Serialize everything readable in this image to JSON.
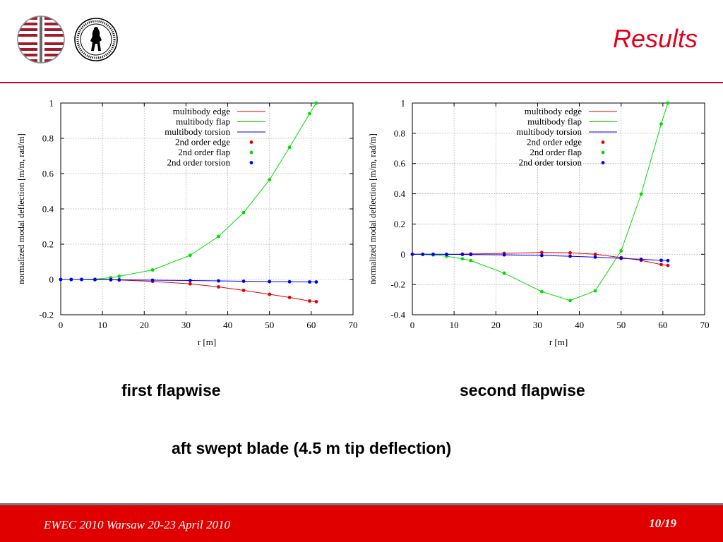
{
  "header": {
    "title": "Results"
  },
  "logos": [
    {
      "icon": "striped-circle-logo-icon"
    },
    {
      "icon": "university-seal-logo-icon"
    }
  ],
  "colors": {
    "accent": "#e2001a",
    "edge": "#e00000",
    "flap": "#00dd00",
    "torsion": "#0000ee"
  },
  "chart_data": [
    {
      "type": "line",
      "xlabel": "r [m]",
      "ylabel": "normalized modal deflection [m/m, rad/m]",
      "xlim": [
        0,
        70
      ],
      "ylim": [
        -0.2,
        1
      ],
      "xticks": [
        0,
        10,
        20,
        30,
        40,
        50,
        60,
        70
      ],
      "yticks": [
        -0.2,
        0,
        0.2,
        0.4,
        0.6,
        0.8,
        1
      ],
      "ytick_labels": [
        "-0.2",
        "0",
        "0.2",
        "0.4",
        "0.6",
        "0.8",
        "1"
      ],
      "grid": true,
      "legend_position": "top-right",
      "series": [
        {
          "name": "multibody edge",
          "kind": "line",
          "color": "#e00000",
          "x": [
            0,
            2.5,
            5,
            8.2,
            12,
            14,
            22,
            31,
            37.8,
            43.8,
            50,
            54.8,
            59.6,
            61.2
          ],
          "y": [
            0,
            0,
            0,
            -0.001,
            -0.002,
            -0.003,
            -0.011,
            -0.025,
            -0.042,
            -0.062,
            -0.084,
            -0.102,
            -0.122,
            -0.126
          ]
        },
        {
          "name": "multibody flap",
          "kind": "line",
          "color": "#00dd00",
          "x": [
            0,
            2.5,
            5,
            8.2,
            12,
            14,
            22,
            31,
            37.8,
            43.8,
            50,
            54.8,
            59.6,
            61.2
          ],
          "y": [
            0,
            0,
            0.001,
            0.002,
            0.01,
            0.018,
            0.054,
            0.137,
            0.244,
            0.379,
            0.565,
            0.749,
            0.94,
            1.0
          ]
        },
        {
          "name": "multibody torsion",
          "kind": "line",
          "color": "#0000ee",
          "x": [
            0,
            2.5,
            5,
            8.2,
            12,
            14,
            22,
            31,
            37.8,
            43.8,
            50,
            54.8,
            59.6,
            61.2
          ],
          "y": [
            0,
            0,
            0,
            -0.001,
            -0.001,
            -0.002,
            -0.004,
            -0.006,
            -0.008,
            -0.01,
            -0.012,
            -0.013,
            -0.014,
            -0.014
          ]
        },
        {
          "name": "2nd order edge",
          "kind": "points",
          "color": "#e00000",
          "x": [
            0,
            2.5,
            5,
            8.2,
            12,
            14,
            22,
            31,
            37.8,
            43.8,
            50,
            54.8,
            59.6,
            61.2
          ],
          "y": [
            0,
            0,
            0,
            -0.001,
            -0.002,
            -0.003,
            -0.011,
            -0.025,
            -0.042,
            -0.062,
            -0.084,
            -0.102,
            -0.122,
            -0.126
          ]
        },
        {
          "name": "2nd order flap",
          "kind": "points",
          "color": "#00dd00",
          "x": [
            0,
            2.5,
            5,
            8.2,
            12,
            14,
            22,
            31,
            37.8,
            43.8,
            50,
            54.8,
            59.6,
            61.2
          ],
          "y": [
            0,
            0,
            0.001,
            0.002,
            0.01,
            0.018,
            0.054,
            0.137,
            0.244,
            0.379,
            0.565,
            0.749,
            0.94,
            1.0
          ]
        },
        {
          "name": "2nd order torsion",
          "kind": "points",
          "color": "#0000ee",
          "x": [
            0,
            2.5,
            5,
            8.2,
            12,
            14,
            22,
            31,
            37.8,
            43.8,
            50,
            54.8,
            59.6,
            61.2
          ],
          "y": [
            0,
            0,
            0,
            -0.001,
            -0.001,
            -0.002,
            -0.004,
            -0.006,
            -0.008,
            -0.01,
            -0.012,
            -0.013,
            -0.014,
            -0.014
          ]
        }
      ]
    },
    {
      "type": "line",
      "xlabel": "r [m]",
      "ylabel": "normalized modal deflection [m/m, rad/m]",
      "xlim": [
        0,
        70
      ],
      "ylim": [
        -0.4,
        1
      ],
      "xticks": [
        0,
        10,
        20,
        30,
        40,
        50,
        60,
        70
      ],
      "yticks": [
        -0.4,
        -0.2,
        0,
        0.2,
        0.4,
        0.6,
        0.8,
        1
      ],
      "ytick_labels": [
        "-0.4",
        "-0.2",
        "0",
        "0.2",
        "0.4",
        "0.6",
        "0.8",
        "1"
      ],
      "grid": true,
      "legend_position": "top-right",
      "series": [
        {
          "name": "multibody edge",
          "kind": "line",
          "color": "#e00000",
          "x": [
            0,
            2.5,
            5,
            8.2,
            12,
            14,
            22,
            31,
            37.8,
            43.8,
            50,
            54.8,
            59.6,
            61.2
          ],
          "y": [
            0,
            0,
            0,
            0,
            0.001,
            0.002,
            0.006,
            0.012,
            0.01,
            0,
            -0.022,
            -0.04,
            -0.068,
            -0.074
          ]
        },
        {
          "name": "multibody flap",
          "kind": "line",
          "color": "#00dd00",
          "x": [
            0,
            2.5,
            5,
            8.2,
            12,
            14,
            22,
            31,
            37.8,
            43.8,
            50,
            54.8,
            59.6,
            61.2
          ],
          "y": [
            0,
            -0.002,
            -0.005,
            -0.013,
            -0.03,
            -0.042,
            -0.125,
            -0.247,
            -0.306,
            -0.242,
            0.022,
            0.398,
            0.862,
            1.0
          ]
        },
        {
          "name": "multibody torsion",
          "kind": "line",
          "color": "#0000ee",
          "x": [
            0,
            2.5,
            5,
            8.2,
            12,
            14,
            22,
            31,
            37.8,
            43.8,
            50,
            54.8,
            59.6,
            61.2
          ],
          "y": [
            0,
            0,
            0,
            -0.001,
            -0.001,
            -0.002,
            -0.004,
            -0.008,
            -0.013,
            -0.019,
            -0.027,
            -0.033,
            -0.04,
            -0.042
          ]
        },
        {
          "name": "2nd order edge",
          "kind": "points",
          "color": "#e00000",
          "x": [
            0,
            2.5,
            5,
            8.2,
            12,
            14,
            22,
            31,
            37.8,
            43.8,
            50,
            54.8,
            59.6,
            61.2
          ],
          "y": [
            0,
            0,
            0,
            0,
            0.001,
            0.002,
            0.006,
            0.012,
            0.01,
            0,
            -0.022,
            -0.04,
            -0.068,
            -0.074
          ]
        },
        {
          "name": "2nd order flap",
          "kind": "points",
          "color": "#00dd00",
          "x": [
            0,
            2.5,
            5,
            8.2,
            12,
            14,
            22,
            31,
            37.8,
            43.8,
            50,
            54.8,
            59.6,
            61.2
          ],
          "y": [
            0,
            -0.002,
            -0.005,
            -0.013,
            -0.03,
            -0.042,
            -0.125,
            -0.247,
            -0.306,
            -0.242,
            0.022,
            0.398,
            0.862,
            1.0
          ]
        },
        {
          "name": "2nd order torsion",
          "kind": "points",
          "color": "#0000ee",
          "x": [
            0,
            2.5,
            5,
            8.2,
            12,
            14,
            22,
            31,
            37.8,
            43.8,
            50,
            54.8,
            59.6,
            61.2
          ],
          "y": [
            0,
            0,
            0,
            -0.001,
            -0.001,
            -0.002,
            -0.004,
            -0.008,
            -0.013,
            -0.019,
            -0.027,
            -0.033,
            -0.04,
            -0.042
          ]
        }
      ]
    }
  ],
  "captions": {
    "left": "first flapwise",
    "right": "second flapwise",
    "main": "aft swept blade (4.5 m tip deflection)"
  },
  "footer": {
    "left": "EWEC 2010 Warsaw 20-23 April 2010",
    "right": "10/19"
  }
}
